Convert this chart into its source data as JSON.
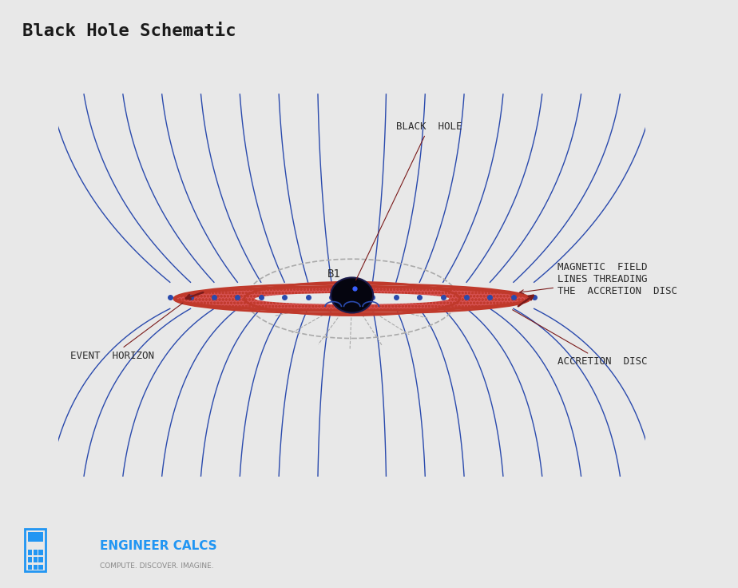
{
  "title": "Black Hole Schematic",
  "bg_color": "#e8e8e8",
  "title_color": "#1a1a1a",
  "title_fontsize": 16,
  "disk_color_fill": "#c0392b",
  "disk_hatch": "o",
  "disk_edge_color": "#c0392b",
  "field_line_color": "#2a4aad",
  "label_color": "#2a2a2a",
  "arrow_color": "#7a1a1a",
  "black_hole_color": "#050510",
  "event_horizon_label": "EVENT  HORIZON",
  "accretion_disc_label": "ACCRETION  DISC",
  "black_hole_label": "BLACK  HOLE",
  "magnetic_field_label": "MAGNETIC  FIELD\nLINES THREADING\nTHE  ACCRETION  DISC",
  "b1_label": "B1",
  "logo_text": "ENGINEER CALCS",
  "logo_sub": "COMPUTE. DISCOVER. IMAGINE.",
  "logo_color": "#2196f3",
  "separator_color": "#b0a898",
  "font_family": "monospace"
}
